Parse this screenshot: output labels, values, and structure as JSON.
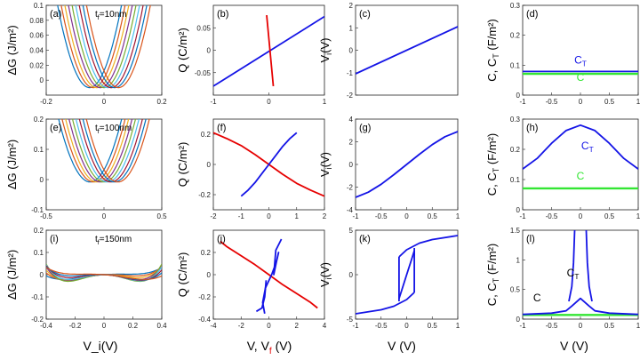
{
  "figure": {
    "col_xlabels": [
      "V_i(V)",
      "",
      "V (V)",
      "V (V)"
    ],
    "col2_xlabel": {
      "prefix": "V, V",
      "sub": "f",
      "paren": " (V)"
    }
  },
  "colors": {
    "G": [
      "#0072bd",
      "#d95319",
      "#edb120",
      "#7e2f8e",
      "#77ac30",
      "#4dbeee",
      "#a2142f",
      "#0072bd",
      "#d95319"
    ],
    "blue": "#1414e6",
    "red": "#e60000",
    "green": "#33e633"
  },
  "chart_data": [
    {
      "id": "a",
      "type": "line",
      "label": "(a)",
      "annotation": "t_f=10nm",
      "ylabel": "ΔG (J/m²)",
      "xlim": [
        -0.2,
        0.2
      ],
      "ylim": [
        -0.02,
        0.1
      ],
      "xticks": [
        -0.2,
        0,
        0.2
      ],
      "xticklabels": [
        "-0.2",
        "0",
        "0.2"
      ],
      "yticks": [
        0,
        0.02,
        0.04,
        0.06,
        0.08,
        0.1
      ],
      "yticklabels": [
        "0",
        "0.02",
        "0.04",
        "0.06",
        "0.08",
        "0.1"
      ],
      "family": {
        "kind": "parabola",
        "a": 9.0,
        "c": -0.01,
        "shifts": [
          -0.05,
          -0.0375,
          -0.025,
          -0.0125,
          0,
          0.0125,
          0.025,
          0.0375,
          0.05
        ]
      }
    },
    {
      "id": "b",
      "type": "line",
      "label": "(b)",
      "ylabel": "Q (C/m²)",
      "xlim": [
        -1,
        1
      ],
      "ylim": [
        -0.1,
        0.1
      ],
      "xticks": [
        -1,
        0,
        1
      ],
      "xticklabels": [
        "-1",
        "0",
        "1"
      ],
      "yticks": [
        -0.05,
        0,
        0.05
      ],
      "yticklabels": [
        "-0.05",
        "0",
        "0.05"
      ],
      "series": [
        {
          "name": "Q vs V",
          "color": "blue",
          "x": [
            -1,
            1
          ],
          "y": [
            -0.08,
            0.075
          ]
        },
        {
          "name": "Q vs V_f",
          "color": "red",
          "x": [
            -0.04,
            0.08
          ],
          "y": [
            0.078,
            -0.08
          ]
        }
      ]
    },
    {
      "id": "c",
      "type": "line",
      "label": "(c)",
      "ylabel": "V_i(V)",
      "xlim": [
        -1,
        1
      ],
      "ylim": [
        -2,
        2
      ],
      "xticks": [],
      "xticklabels": [],
      "yticks": [
        -2,
        -1,
        0,
        1,
        2
      ],
      "yticklabels": [
        "-2",
        "-1",
        "0",
        "1",
        "2"
      ],
      "series": [
        {
          "name": "V_i",
          "color": "blue",
          "x": [
            -1,
            1
          ],
          "y": [
            -1.05,
            1.05
          ]
        }
      ]
    },
    {
      "id": "d",
      "type": "line",
      "label": "(d)",
      "ylabel": "C, C_T (F/m²)",
      "xlim": [
        -1,
        1
      ],
      "ylim": [
        0,
        0.3
      ],
      "xticks": [
        -1,
        -0.5,
        0,
        0.5,
        1
      ],
      "xticklabels": [
        "-1",
        "-0.5",
        "0",
        "0.5",
        "1"
      ],
      "yticks": [
        0,
        0.1,
        0.2,
        0.3
      ],
      "yticklabels": [
        "0",
        "0.1",
        "0.2",
        "0.3"
      ],
      "series": [
        {
          "name": "C_T",
          "color": "blue",
          "x": [
            -1,
            1
          ],
          "y": [
            0.079,
            0.079
          ]
        },
        {
          "name": "C",
          "color": "green",
          "x": [
            -1,
            1
          ],
          "y": [
            0.071,
            0.071
          ]
        }
      ],
      "annotations": [
        {
          "text": "C",
          "sub": "T",
          "color": "blue",
          "at": [
            0.0,
            0.105
          ]
        },
        {
          "text": "C",
          "color": "green",
          "at": [
            0.0,
            0.047
          ]
        }
      ]
    },
    {
      "id": "e",
      "type": "line",
      "label": "(e)",
      "annotation": "t_f=100nm",
      "ylabel": "ΔG (J/m²)",
      "xlim": [
        -0.5,
        0.5
      ],
      "ylim": [
        -0.1,
        0.2
      ],
      "xticks": [
        -0.5,
        0,
        0.5
      ],
      "xticklabels": [
        "-0.5",
        "0",
        "0.5"
      ],
      "yticks": [
        -0.1,
        0,
        0.1,
        0.2
      ],
      "yticklabels": [
        "-0.1",
        "0",
        "0.1",
        "0.2"
      ],
      "family": {
        "kind": "parabola",
        "a": 2.8,
        "c": -0.008,
        "shifts": [
          -0.12,
          -0.09,
          -0.06,
          -0.03,
          0,
          0.03,
          0.06,
          0.09,
          0.12
        ]
      }
    },
    {
      "id": "f",
      "type": "line",
      "label": "(f)",
      "ylabel": "Q (C/m²)",
      "xlim": [
        -2,
        2
      ],
      "ylim": [
        -0.3,
        0.3
      ],
      "xticks": [
        -2,
        -1,
        0,
        1,
        2
      ],
      "xticklabels": [
        "-2",
        "-1",
        "0",
        "1",
        "2"
      ],
      "yticks": [
        -0.2,
        0,
        0.2
      ],
      "yticklabels": [
        "-0.2",
        "0",
        "0.2"
      ],
      "series": [
        {
          "name": "Q vs V_f",
          "color": "red",
          "x": [
            -2,
            -1.5,
            -1,
            -0.5,
            0,
            0.5,
            1,
            1.5,
            2
          ],
          "y": [
            0.21,
            0.17,
            0.125,
            0.065,
            0,
            -0.065,
            -0.125,
            -0.17,
            -0.21
          ]
        },
        {
          "name": "Q vs V",
          "color": "blue",
          "x": [
            -1,
            -0.75,
            -0.5,
            -0.25,
            0,
            0.25,
            0.5,
            0.75,
            1
          ],
          "y": [
            -0.21,
            -0.17,
            -0.12,
            -0.06,
            0,
            0.06,
            0.12,
            0.17,
            0.21
          ]
        }
      ]
    },
    {
      "id": "g",
      "type": "line",
      "label": "(g)",
      "ylabel": "V_i(V)",
      "xlim": [
        -1,
        1
      ],
      "ylim": [
        -4,
        4
      ],
      "xticks": [
        -1,
        -0.5,
        0,
        0.5,
        1
      ],
      "xticklabels": [
        "-1",
        "-0.5",
        "0",
        "0.5",
        "1"
      ],
      "yticks": [
        -4,
        -2,
        0,
        2,
        4
      ],
      "yticklabels": [
        "-4",
        "-2",
        "0",
        "2",
        "4"
      ],
      "series": [
        {
          "name": "V_i",
          "color": "blue",
          "x": [
            -1,
            -0.75,
            -0.5,
            -0.25,
            0,
            0.25,
            0.5,
            0.75,
            1
          ],
          "y": [
            -2.9,
            -2.45,
            -1.75,
            -0.9,
            0,
            0.9,
            1.75,
            2.45,
            2.9
          ]
        }
      ]
    },
    {
      "id": "h",
      "type": "line",
      "label": "(h)",
      "ylabel": "C, C_T (F/m²)",
      "xlim": [
        -1,
        1
      ],
      "ylim": [
        0,
        0.3
      ],
      "xticks": [
        -1,
        -0.5,
        0,
        0.5,
        1
      ],
      "xticklabels": [
        "-1",
        "-0.5",
        "0",
        "0.5",
        "1"
      ],
      "yticks": [
        0,
        0.1,
        0.2,
        0.3
      ],
      "yticklabels": [
        "0",
        "0.1",
        "0.2",
        "0.3"
      ],
      "series": [
        {
          "name": "C_T",
          "color": "blue",
          "x": [
            -1,
            -0.75,
            -0.5,
            -0.25,
            0,
            0.25,
            0.5,
            0.75,
            1
          ],
          "y": [
            0.135,
            0.17,
            0.22,
            0.262,
            0.28,
            0.262,
            0.22,
            0.17,
            0.135
          ]
        },
        {
          "name": "C",
          "color": "green",
          "x": [
            -1,
            1
          ],
          "y": [
            0.071,
            0.071
          ]
        }
      ],
      "annotations": [
        {
          "text": "C",
          "sub": "T",
          "color": "blue",
          "at": [
            0.12,
            0.2
          ]
        },
        {
          "text": "C",
          "color": "green",
          "at": [
            0.0,
            0.1
          ]
        }
      ]
    },
    {
      "id": "i",
      "type": "line",
      "label": "(i)",
      "annotation": "t_f=150nm",
      "ylabel": "ΔG (J/m²)",
      "xlim": [
        -0.4,
        0.4
      ],
      "ylim": [
        -0.2,
        0.2
      ],
      "xticks": [
        -0.4,
        -0.2,
        0,
        0.2,
        0.4
      ],
      "xticklabels": [
        "-0.4",
        "-0.2",
        "0",
        "0.2",
        "0.4"
      ],
      "yticks": [
        -0.2,
        -0.1,
        0,
        0.1,
        0.2
      ],
      "yticklabels": [
        "-0.2",
        "-0.1",
        "0",
        "0.1",
        "0.2"
      ],
      "family": {
        "kind": "doublewell",
        "base_depth": 0.088,
        "quartic": 8.0,
        "shifts": [
          0.08,
          0.06,
          0.04,
          0.02,
          0,
          -0.02,
          -0.04,
          -0.06,
          -0.08
        ]
      }
    },
    {
      "id": "j",
      "type": "line",
      "label": "(j)",
      "ylabel": "Q (C/m²)",
      "xlabel_colored": true,
      "xlim": [
        -4,
        4
      ],
      "ylim": [
        -0.4,
        0.4
      ],
      "xticks": [
        -4,
        -2,
        0,
        2,
        4
      ],
      "xticklabels": [
        "-4",
        "-2",
        "0",
        "2",
        "4"
      ],
      "yticks": [
        -0.4,
        -0.2,
        0,
        0.2
      ],
      "yticklabels": [
        "-0.4",
        "-0.2",
        "0",
        "0.2"
      ],
      "series": [
        {
          "name": "Q vs V_f",
          "color": "red",
          "x": [
            -3.5,
            -3,
            -2,
            -1,
            0,
            1,
            2,
            3,
            3.5
          ],
          "y": [
            0.3,
            0.25,
            0.17,
            0.09,
            0,
            -0.09,
            -0.17,
            -0.25,
            -0.3
          ]
        },
        {
          "name": "Q vs V (S-curve)",
          "color": "blue",
          "x": [
            -0.3,
            -0.45,
            -0.25,
            0.2,
            0.55,
            0.7,
            0.55,
            0.35,
            0.5,
            0.9
          ],
          "y": [
            -0.35,
            -0.25,
            -0.12,
            0,
            0.12,
            0.2,
            0.12,
            0.0,
            0.22,
            0.32
          ]
        },
        {
          "name": "Q vs V (lower branch)",
          "color": "blue",
          "x": [
            -0.9,
            -0.5,
            -0.3,
            -0.2
          ],
          "y": [
            -0.33,
            -0.3,
            -0.2,
            -0.05
          ]
        }
      ]
    },
    {
      "id": "k",
      "type": "line",
      "label": "(k)",
      "ylabel": "V_i(V)",
      "xlim": [
        -1,
        1
      ],
      "ylim": [
        -5,
        5
      ],
      "xticks": [
        -1,
        -0.5,
        0,
        0.5,
        1
      ],
      "xticklabels": [
        "-1",
        "-0.5",
        "0",
        "0.5",
        "1"
      ],
      "yticks": [
        -5,
        0,
        5
      ],
      "yticklabels": [
        "-5",
        "0",
        "5"
      ],
      "series": [
        {
          "name": "lower branch",
          "color": "blue",
          "x": [
            -1,
            -0.5,
            -0.25,
            0,
            0.15
          ],
          "y": [
            -4.4,
            -3.95,
            -3.55,
            -2.8,
            -2.0
          ]
        },
        {
          "name": "upper branch",
          "color": "blue",
          "x": [
            -0.15,
            0,
            0.25,
            0.5,
            1
          ],
          "y": [
            2.0,
            2.8,
            3.55,
            3.95,
            4.4
          ]
        },
        {
          "name": "unstable branch",
          "color": "blue",
          "x": [
            -0.15,
            -0.1,
            0,
            0.1,
            0.15
          ],
          "y": [
            -2.7,
            -1.8,
            0,
            1.8,
            2.7
          ]
        },
        {
          "name": "jump up",
          "color": "blue",
          "x": [
            0.15,
            0.15
          ],
          "y": [
            -2.0,
            3.0
          ]
        },
        {
          "name": "jump down",
          "color": "blue",
          "x": [
            -0.15,
            -0.15
          ],
          "y": [
            2.0,
            -3.0
          ]
        }
      ]
    },
    {
      "id": "l",
      "type": "line",
      "label": "(l)",
      "ylabel": "C, C_T (F/m²)",
      "xlim": [
        -1,
        1
      ],
      "ylim": [
        0,
        1.5
      ],
      "xticks": [
        -1,
        -0.5,
        0,
        0.5,
        1
      ],
      "xticklabels": [
        "-1",
        "-0.5",
        "0",
        "0.5",
        "1"
      ],
      "yticks": [
        0,
        0.5,
        1,
        1.5
      ],
      "yticklabels": [
        "0",
        "0.5",
        "1",
        "1.5"
      ],
      "series": [
        {
          "name": "C",
          "color": "green",
          "x": [
            -1,
            1
          ],
          "y": [
            0.07,
            0.07
          ]
        },
        {
          "name": "C_T base",
          "color": "blue",
          "x": [
            -1,
            -0.5,
            -0.25,
            -0.15,
            0,
            0.15,
            0.25,
            0.5,
            1
          ],
          "y": [
            0.08,
            0.1,
            0.14,
            0.22,
            0.35,
            0.22,
            0.14,
            0.1,
            0.08
          ]
        },
        {
          "name": "C_T peak left",
          "color": "blue",
          "x": [
            -0.2,
            -0.15,
            -0.12,
            -0.1
          ],
          "y": [
            0.3,
            0.55,
            0.95,
            1.5
          ]
        },
        {
          "name": "C_T peak right",
          "color": "blue",
          "x": [
            0.1,
            0.12,
            0.15,
            0.2
          ],
          "y": [
            1.5,
            0.95,
            0.55,
            0.3
          ]
        }
      ],
      "annotations": [
        {
          "text": "C",
          "sub": "T",
          "color": "black",
          "at": [
            -0.13,
            0.72
          ]
        },
        {
          "text": "C",
          "color": "black",
          "at": [
            -0.75,
            0.3
          ]
        }
      ]
    }
  ]
}
